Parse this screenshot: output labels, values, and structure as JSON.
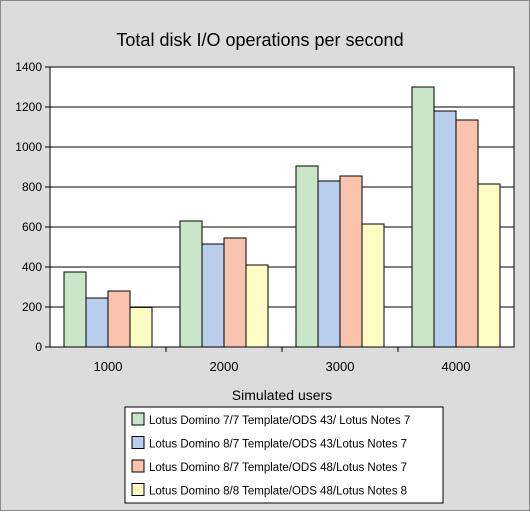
{
  "chart_data": {
    "type": "bar",
    "title": "Total disk I/O operations per second",
    "xlabel": "Simulated users",
    "ylabel": "",
    "categories": [
      "1000",
      "2000",
      "3000",
      "4000"
    ],
    "ylim": [
      0,
      1400
    ],
    "yticks": [
      "0",
      "200",
      "400",
      "600",
      "800",
      "1000",
      "1200",
      "1400"
    ],
    "grid": true,
    "legend_position": "bottom",
    "series": [
      {
        "name": "Lotus Domino 7/7 Template/ODS 43/ Lotus Notes 7",
        "color": "#c9e6c9",
        "values": [
          375,
          630,
          905,
          1300
        ]
      },
      {
        "name": "Lotus Domino 8/7 Template/ODS 43/Lotus Notes 7",
        "color": "#b9cded",
        "values": [
          245,
          515,
          830,
          1180
        ]
      },
      {
        "name": "Lotus Domino 8/7 Template/ODS 48/Lotus Notes 7",
        "color": "#f9c3ae",
        "values": [
          280,
          545,
          855,
          1135
        ]
      },
      {
        "name": "Lotus Domino 8/8 Template/ODS 48/Lotus Notes 8",
        "color": "#fdfcc3",
        "values": [
          198,
          410,
          615,
          815
        ]
      }
    ],
    "colors": {
      "background": "#dcdcdc",
      "plot_background": "#ffffff",
      "grid": "#000000",
      "bar_stroke": "#000000"
    }
  }
}
